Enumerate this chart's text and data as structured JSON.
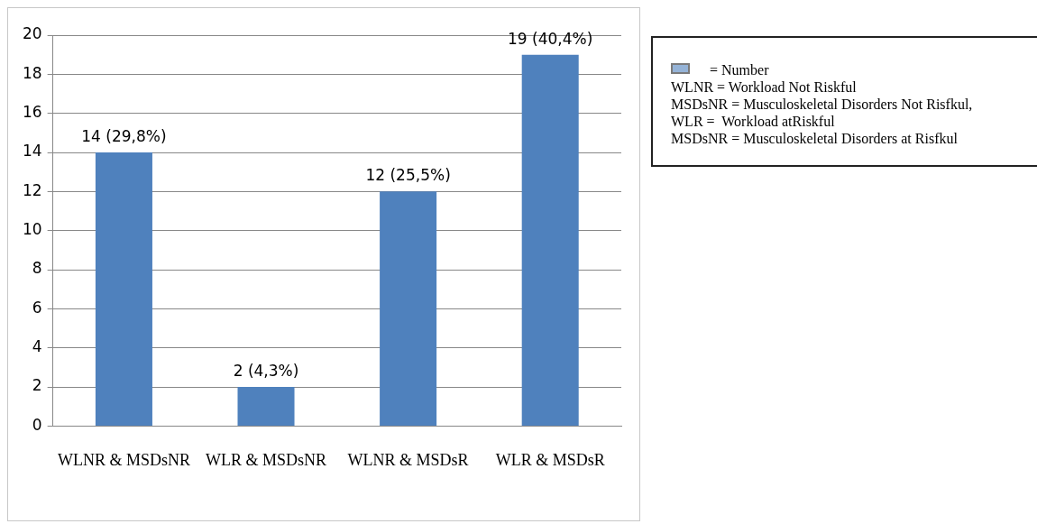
{
  "chart_data": {
    "type": "bar",
    "categories": [
      "WLNR & MSDsNR",
      "WLR & MSDsNR",
      "WLNR & MSDsR",
      "WLR & MSDsR"
    ],
    "series": [
      {
        "name": "= Number",
        "color": "#4f81bd",
        "values": [
          14,
          2,
          12,
          19
        ],
        "value_labels": [
          "14 (29,8%)",
          "2 (4,3%)",
          "12 (25,5%)",
          "19 (40,4%)"
        ]
      }
    ],
    "ylim": [
      0,
      20
    ],
    "yticks": [
      0,
      2,
      4,
      6,
      8,
      10,
      12,
      14,
      16,
      18,
      20
    ],
    "grid": "y",
    "legend": "right",
    "annotations": [
      "WLNR = Workload Not Riskful",
      "MSDsNR = Musculoskeletal Disorders Not Risfkul,",
      "WLR =  Workload atRiskful",
      "MSDsNR = Musculoskeletal Disorders at Risfkul"
    ]
  }
}
